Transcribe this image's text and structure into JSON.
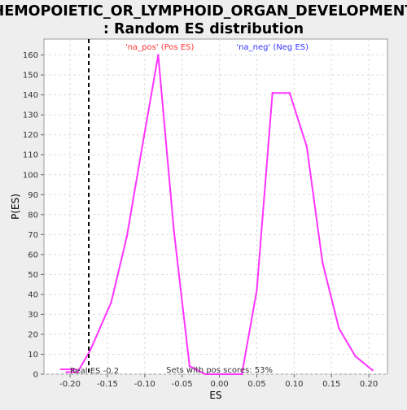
{
  "chart_data": {
    "type": "line",
    "title_lines": [
      "HEMOPOIETIC_OR_LYMPHOID_ORGAN_DEVELOPMENT",
      ": Random ES distribution"
    ],
    "xlabel": "ES",
    "ylabel": "P(ES)",
    "xlim": [
      -0.235,
      0.225
    ],
    "ylim": [
      0,
      168
    ],
    "xticks": [
      -0.2,
      -0.15,
      -0.1,
      -0.05,
      0.0,
      0.05,
      0.1,
      0.15,
      0.2
    ],
    "xtick_labels": [
      "-0.20",
      "-0.15",
      "-0.10",
      "-0.05",
      "0.00",
      "0.05",
      "0.10",
      "0.15",
      "0.20"
    ],
    "yticks": [
      0,
      10,
      20,
      30,
      40,
      50,
      60,
      70,
      80,
      90,
      100,
      110,
      120,
      130,
      140,
      150,
      160
    ],
    "grid": true,
    "series": [
      {
        "name": "",
        "color": "#ff33ff",
        "x": [
          -0.205,
          -0.19,
          -0.173,
          -0.145,
          -0.124,
          -0.103,
          -0.082,
          -0.061,
          -0.04,
          -0.019,
          0.009,
          0.03,
          0.05,
          0.071,
          0.094,
          0.117,
          0.138,
          0.16,
          0.182,
          0.205
        ],
        "y": [
          1,
          1,
          12,
          36,
          69,
          115,
          160,
          72,
          4,
          0,
          0,
          0,
          42,
          141,
          141,
          114,
          56,
          23,
          9,
          2
        ]
      }
    ],
    "real_es": {
      "x": -0.175,
      "label": "Real ES -0.2",
      "color": "#000000"
    },
    "annotations": {
      "pos_label": "'na_pos' (Pos ES)",
      "pos_color": "#ff3333",
      "neg_label": "'na_neg' (Neg ES)",
      "neg_color": "#3333ff",
      "pos_scores_text": "Sets with pos scores: 53%"
    },
    "legend_position": "bottom-left"
  }
}
